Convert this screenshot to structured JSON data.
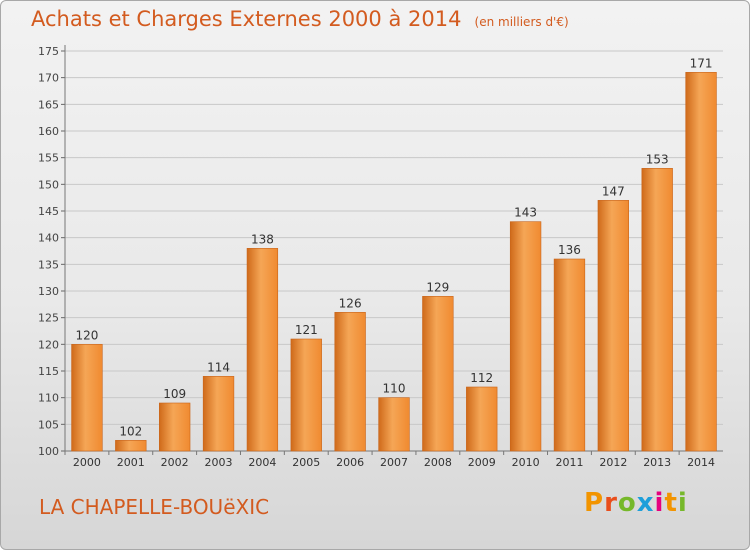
{
  "title": "Achats et Charges Externes 2000 à 2014",
  "unit_note": "(en milliers d'€)",
  "commune": "LA CHAPELLE-BOUëXIC",
  "logo": {
    "text": "Proxiti",
    "colors": [
      "#f29400",
      "#e94e1b",
      "#76b82a",
      "#1d9fda",
      "#e6007e",
      "#f29400",
      "#76b82a"
    ]
  },
  "colors": {
    "bar": "#f08a30",
    "bar_light": "#f5a656",
    "bar_dark": "#cf6a1a",
    "title": "#d35b1f",
    "grid": "#c8c8c8"
  },
  "chart_data": {
    "type": "bar",
    "categories": [
      "2000",
      "2001",
      "2002",
      "2003",
      "2004",
      "2005",
      "2006",
      "2007",
      "2008",
      "2009",
      "2010",
      "2011",
      "2012",
      "2013",
      "2014"
    ],
    "values": [
      120,
      102,
      109,
      114,
      138,
      121,
      126,
      110,
      129,
      112,
      143,
      136,
      147,
      153,
      171
    ],
    "ylim": [
      100,
      175
    ],
    "yticks": [
      100,
      105,
      110,
      115,
      120,
      125,
      130,
      135,
      140,
      145,
      150,
      155,
      160,
      165,
      170,
      175
    ],
    "grid": true,
    "xlabel": "",
    "ylabel": ""
  }
}
